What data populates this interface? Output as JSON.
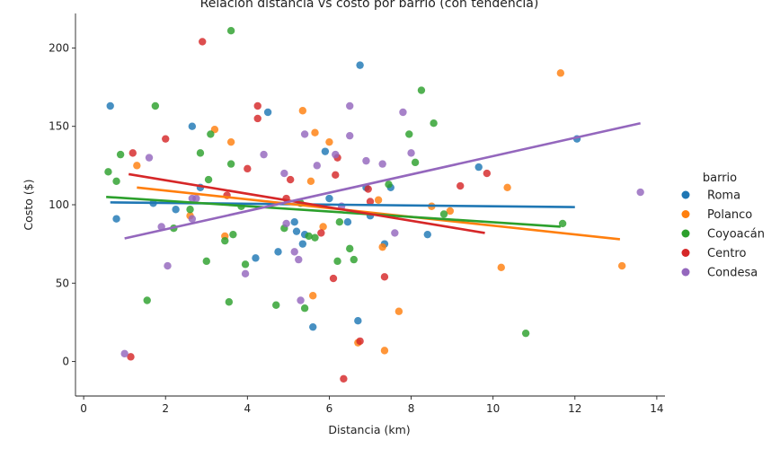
{
  "chart_data": {
    "type": "scatter",
    "title": "Relación distancia vs costo por barrio (con tendencia)",
    "xlabel": "Distancia (km)",
    "ylabel": "Costo ($)",
    "xlim": [
      -0.2,
      14.2
    ],
    "ylim": [
      -22,
      222
    ],
    "xticks": [
      0,
      2,
      4,
      6,
      8,
      10,
      12,
      14
    ],
    "yticks": [
      0,
      50,
      100,
      150,
      200
    ],
    "grid": false,
    "legend": {
      "title": "barrio",
      "placement": "right"
    },
    "series": [
      {
        "name": "Roma",
        "color": "#1f77b4",
        "trend": [
          [
            0.65,
            101.5
          ],
          [
            12.0,
            98.5
          ]
        ],
        "points": [
          [
            0.65,
            163
          ],
          [
            0.8,
            91
          ],
          [
            1.7,
            101
          ],
          [
            2.25,
            97
          ],
          [
            2.65,
            150
          ],
          [
            2.85,
            111
          ],
          [
            4.2,
            66
          ],
          [
            4.5,
            159
          ],
          [
            4.75,
            70
          ],
          [
            5.15,
            89
          ],
          [
            5.2,
            83
          ],
          [
            5.35,
            75
          ],
          [
            5.4,
            81
          ],
          [
            5.6,
            22
          ],
          [
            5.9,
            134
          ],
          [
            6.0,
            104
          ],
          [
            6.45,
            89
          ],
          [
            6.7,
            26
          ],
          [
            6.75,
            189
          ],
          [
            6.9,
            111
          ],
          [
            7.0,
            93
          ],
          [
            7.35,
            75
          ],
          [
            7.5,
            111
          ],
          [
            8.4,
            81
          ],
          [
            9.65,
            124
          ],
          [
            12.05,
            142
          ]
        ]
      },
      {
        "name": "Polanco",
        "color": "#ff7f0e",
        "trend": [
          [
            1.3,
            111
          ],
          [
            13.1,
            78
          ]
        ],
        "points": [
          [
            1.3,
            125
          ],
          [
            2.6,
            93
          ],
          [
            3.2,
            148
          ],
          [
            3.45,
            80
          ],
          [
            3.6,
            140
          ],
          [
            5.35,
            160
          ],
          [
            5.55,
            115
          ],
          [
            5.6,
            42
          ],
          [
            5.65,
            146
          ],
          [
            5.85,
            86
          ],
          [
            6.0,
            140
          ],
          [
            6.7,
            12
          ],
          [
            7.2,
            103
          ],
          [
            7.3,
            73
          ],
          [
            7.35,
            7
          ],
          [
            7.7,
            32
          ],
          [
            8.5,
            99
          ],
          [
            8.95,
            96
          ],
          [
            10.2,
            60
          ],
          [
            10.35,
            111
          ],
          [
            11.65,
            184
          ],
          [
            13.15,
            61
          ]
        ]
      },
      {
        "name": "Coyoacán",
        "color": "#2ca02c",
        "trend": [
          [
            0.55,
            105
          ],
          [
            11.65,
            86
          ]
        ],
        "points": [
          [
            0.6,
            121
          ],
          [
            0.8,
            115
          ],
          [
            0.9,
            132
          ],
          [
            1.55,
            39
          ],
          [
            1.75,
            163
          ],
          [
            2.2,
            85
          ],
          [
            2.6,
            97
          ],
          [
            2.85,
            133
          ],
          [
            3.0,
            64
          ],
          [
            3.05,
            116
          ],
          [
            3.1,
            145
          ],
          [
            3.45,
            77
          ],
          [
            3.55,
            38
          ],
          [
            3.6,
            211
          ],
          [
            3.6,
            126
          ],
          [
            3.65,
            81
          ],
          [
            3.85,
            99
          ],
          [
            3.95,
            62
          ],
          [
            4.7,
            36
          ],
          [
            4.9,
            85
          ],
          [
            5.3,
            101
          ],
          [
            5.4,
            34
          ],
          [
            5.5,
            80
          ],
          [
            5.65,
            79
          ],
          [
            6.2,
            64
          ],
          [
            6.25,
            89
          ],
          [
            6.5,
            72
          ],
          [
            6.6,
            65
          ],
          [
            7.45,
            113
          ],
          [
            7.95,
            145
          ],
          [
            8.1,
            127
          ],
          [
            8.25,
            173
          ],
          [
            8.55,
            152
          ],
          [
            8.8,
            94
          ],
          [
            10.8,
            18
          ],
          [
            11.7,
            88
          ]
        ]
      },
      {
        "name": "Centro",
        "color": "#d62728",
        "trend": [
          [
            1.1,
            119.5
          ],
          [
            9.8,
            82
          ]
        ],
        "points": [
          [
            1.15,
            3
          ],
          [
            1.2,
            133
          ],
          [
            2.0,
            142
          ],
          [
            2.9,
            204
          ],
          [
            3.5,
            106
          ],
          [
            4.0,
            123
          ],
          [
            4.25,
            163
          ],
          [
            4.25,
            155
          ],
          [
            4.95,
            104
          ],
          [
            5.05,
            116
          ],
          [
            5.8,
            82
          ],
          [
            6.1,
            53
          ],
          [
            6.15,
            119
          ],
          [
            6.2,
            130
          ],
          [
            6.35,
            -11
          ],
          [
            6.75,
            13
          ],
          [
            6.95,
            110
          ],
          [
            7.0,
            102
          ],
          [
            7.35,
            54
          ],
          [
            9.2,
            112
          ],
          [
            9.85,
            120
          ]
        ]
      },
      {
        "name": "Condesa",
        "color": "#9467bd",
        "trend": [
          [
            1.0,
            78.5
          ],
          [
            13.6,
            152
          ]
        ],
        "points": [
          [
            1.0,
            5
          ],
          [
            1.6,
            130
          ],
          [
            1.9,
            86
          ],
          [
            2.05,
            61
          ],
          [
            2.65,
            104
          ],
          [
            2.65,
            91
          ],
          [
            2.75,
            104
          ],
          [
            3.95,
            56
          ],
          [
            4.4,
            132
          ],
          [
            4.9,
            120
          ],
          [
            4.95,
            88
          ],
          [
            5.15,
            70
          ],
          [
            5.25,
            65
          ],
          [
            5.3,
            39
          ],
          [
            5.4,
            145
          ],
          [
            5.7,
            125
          ],
          [
            6.15,
            132
          ],
          [
            6.3,
            99
          ],
          [
            6.5,
            144
          ],
          [
            6.5,
            163
          ],
          [
            6.9,
            128
          ],
          [
            7.3,
            126
          ],
          [
            7.6,
            82
          ],
          [
            7.8,
            159
          ],
          [
            8.0,
            133
          ],
          [
            13.6,
            108
          ]
        ]
      }
    ]
  }
}
